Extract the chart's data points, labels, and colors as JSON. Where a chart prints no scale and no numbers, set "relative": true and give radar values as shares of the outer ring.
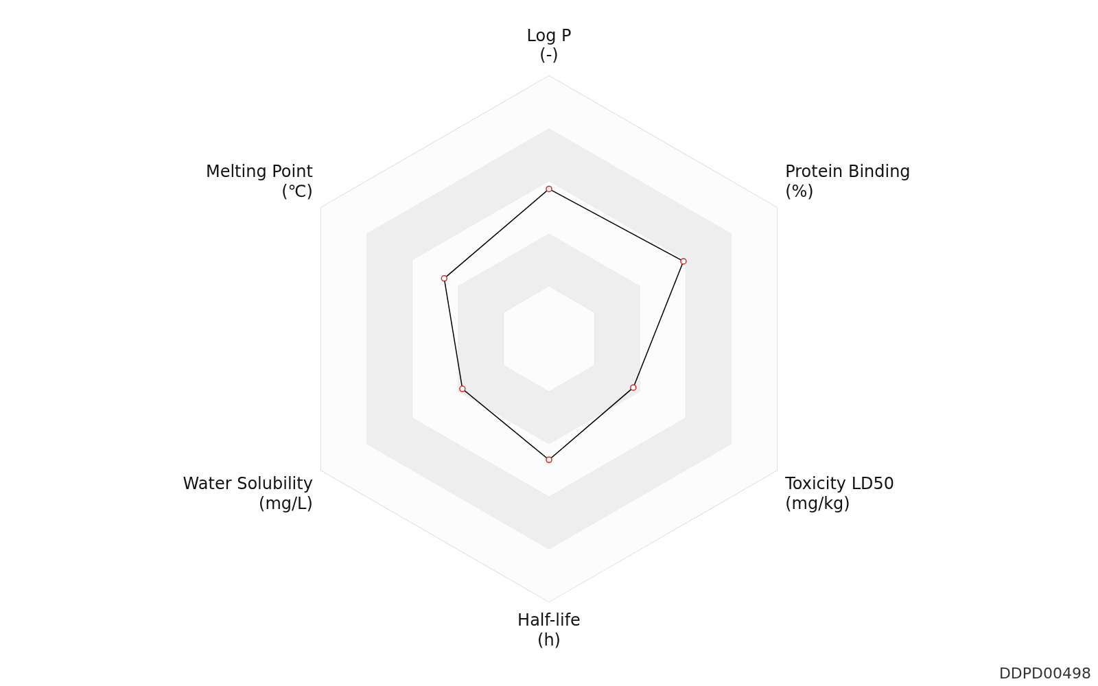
{
  "chart_data": {
    "type": "radar",
    "relative": true,
    "categories": [
      "Log P\n(-)",
      "Protein Binding\n(%)",
      "Toxicity LD50\n(mg/kg)",
      "Half-life\n(h)",
      "Water Solubility\n(mg/L)",
      "Melting Point\n(℃)"
    ],
    "series": [
      {
        "color": "#000000",
        "values": [
          0.57,
          0.59,
          0.37,
          0.46,
          0.38,
          0.46
        ]
      }
    ],
    "marker": "circle",
    "annotations": [
      "DDPD00498"
    ]
  }
}
